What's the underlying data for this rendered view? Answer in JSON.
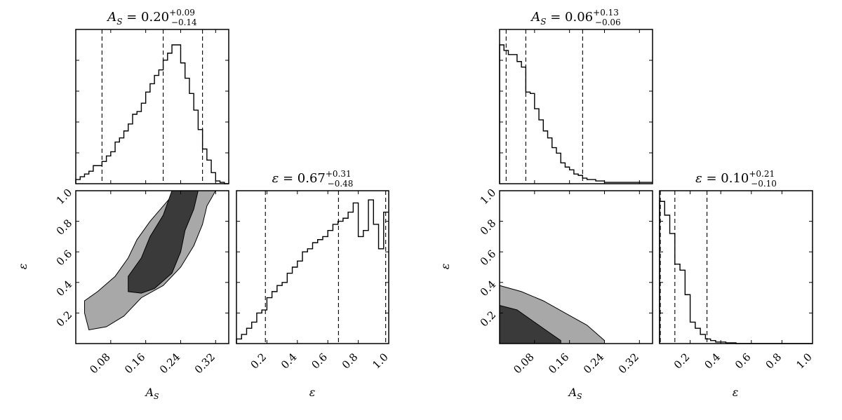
{
  "chart_data": [
    {
      "type": "corner",
      "variables": [
        "A_S",
        "ε"
      ],
      "axis_labels": {
        "x_left": "A_S",
        "x_right": "ε",
        "y_contour": "ε"
      },
      "marginal_A_S": {
        "type": "histogram",
        "title": {
          "lead": "A",
          "sub": "S",
          "eq": " = 0.20",
          "sup": "+0.09",
          "inf": "−0.14"
        },
        "xlim": [
          0.0,
          0.35
        ],
        "quantiles": [
          0.06,
          0.2,
          0.29
        ],
        "bins": [
          0.01,
          0.02,
          0.03,
          0.04,
          0.05,
          0.06,
          0.07,
          0.08,
          0.09,
          0.1,
          0.11,
          0.12,
          0.13,
          0.14,
          0.15,
          0.16,
          0.17,
          0.18,
          0.19,
          0.2,
          0.21,
          0.22,
          0.23,
          0.24,
          0.25,
          0.26,
          0.27,
          0.28,
          0.29,
          0.3,
          0.31,
          0.32,
          0.33,
          0.34,
          0.35
        ],
        "values": [
          0.03,
          0.05,
          0.07,
          0.09,
          0.13,
          0.13,
          0.16,
          0.2,
          0.23,
          0.3,
          0.33,
          0.38,
          0.43,
          0.5,
          0.52,
          0.58,
          0.66,
          0.72,
          0.78,
          0.82,
          0.89,
          0.94,
          1.0,
          1.0,
          0.87,
          0.76,
          0.65,
          0.53,
          0.39,
          0.25,
          0.17,
          0.08,
          0.02,
          0.01,
          0.0
        ]
      },
      "marginal_eps": {
        "type": "histogram",
        "title": {
          "lead": "ε",
          "sub": "",
          "eq": " = 0.67",
          "sup": "+0.31",
          "inf": "−0.48"
        },
        "xlim": [
          0.0,
          1.0
        ],
        "xticks": [
          "0.2",
          "0.4",
          "0.6",
          "0.8",
          "1.0"
        ],
        "quantiles": [
          0.19,
          0.67,
          0.98
        ],
        "bins": [
          0.033,
          0.067,
          0.1,
          0.133,
          0.167,
          0.2,
          0.233,
          0.267,
          0.3,
          0.333,
          0.367,
          0.4,
          0.433,
          0.467,
          0.5,
          0.533,
          0.567,
          0.6,
          0.633,
          0.667,
          0.7,
          0.733,
          0.767,
          0.8,
          0.833,
          0.867,
          0.9,
          0.933,
          0.967,
          1.0
        ],
        "values": [
          0.03,
          0.06,
          0.1,
          0.14,
          0.2,
          0.22,
          0.3,
          0.34,
          0.38,
          0.4,
          0.46,
          0.5,
          0.54,
          0.6,
          0.62,
          0.66,
          0.68,
          0.7,
          0.74,
          0.78,
          0.8,
          0.82,
          0.86,
          0.92,
          0.7,
          0.74,
          0.94,
          0.78,
          0.62,
          0.86
        ]
      },
      "joint": {
        "type": "contour",
        "xlim": [
          0.0,
          0.35
        ],
        "ylim": [
          0.0,
          1.0
        ],
        "xticks": [
          "0.08",
          "0.16",
          "0.24",
          "0.32"
        ],
        "yticks": [
          "0.2",
          "0.4",
          "0.6",
          "0.8",
          "1.0"
        ],
        "levels": [
          "outer",
          "inner"
        ],
        "outer": [
          [
            0.03,
            0.09
          ],
          [
            0.02,
            0.2
          ],
          [
            0.02,
            0.28
          ],
          [
            0.05,
            0.34
          ],
          [
            0.09,
            0.44
          ],
          [
            0.12,
            0.56
          ],
          [
            0.14,
            0.68
          ],
          [
            0.17,
            0.8
          ],
          [
            0.2,
            0.9
          ],
          [
            0.23,
            1.0
          ],
          [
            0.32,
            1.0
          ],
          [
            0.3,
            0.9
          ],
          [
            0.29,
            0.78
          ],
          [
            0.27,
            0.64
          ],
          [
            0.24,
            0.5
          ],
          [
            0.2,
            0.38
          ],
          [
            0.15,
            0.3
          ],
          [
            0.11,
            0.18
          ],
          [
            0.07,
            0.11
          ]
        ],
        "inner": [
          [
            0.12,
            0.34
          ],
          [
            0.12,
            0.44
          ],
          [
            0.15,
            0.56
          ],
          [
            0.17,
            0.7
          ],
          [
            0.2,
            0.84
          ],
          [
            0.22,
            1.0
          ],
          [
            0.28,
            1.0
          ],
          [
            0.27,
            0.88
          ],
          [
            0.25,
            0.74
          ],
          [
            0.24,
            0.6
          ],
          [
            0.22,
            0.46
          ],
          [
            0.18,
            0.36
          ],
          [
            0.15,
            0.33
          ]
        ]
      }
    },
    {
      "type": "corner",
      "variables": [
        "A_S",
        "ε"
      ],
      "axis_labels": {
        "x_left": "A_S",
        "x_right": "ε",
        "y_contour": "ε"
      },
      "marginal_A_S": {
        "type": "histogram",
        "title": {
          "lead": "A",
          "sub": "S",
          "eq": " = 0.06",
          "sup": "+0.13",
          "inf": "−0.06"
        },
        "xlim": [
          0.0,
          0.35
        ],
        "quantiles": [
          0.015,
          0.06,
          0.19
        ],
        "bins": [
          0.01,
          0.02,
          0.03,
          0.04,
          0.05,
          0.06,
          0.07,
          0.08,
          0.09,
          0.1,
          0.11,
          0.12,
          0.13,
          0.14,
          0.15,
          0.16,
          0.17,
          0.18,
          0.19,
          0.2,
          0.21,
          0.22,
          0.23,
          0.24,
          0.25,
          0.26,
          0.27,
          0.28,
          0.29,
          0.3,
          0.31,
          0.32,
          0.33,
          0.34,
          0.35
        ],
        "values": [
          1.0,
          0.96,
          0.93,
          0.93,
          0.88,
          0.84,
          0.66,
          0.65,
          0.54,
          0.46,
          0.38,
          0.33,
          0.26,
          0.22,
          0.15,
          0.12,
          0.1,
          0.07,
          0.06,
          0.04,
          0.03,
          0.03,
          0.02,
          0.02,
          0.01,
          0.01,
          0.01,
          0.01,
          0.01,
          0.01,
          0.01,
          0.01,
          0.01,
          0.01,
          0.01
        ]
      },
      "marginal_eps": {
        "type": "histogram",
        "title": {
          "lead": "ε",
          "sub": "",
          "eq": " = 0.10",
          "sup": "+0.21",
          "inf": "−0.10"
        },
        "xlim": [
          0.0,
          1.0
        ],
        "xticks": [
          "0.2",
          "0.4",
          "0.6",
          "0.8",
          "1.0"
        ],
        "quantiles": [
          0.005,
          0.1,
          0.31
        ],
        "bins": [
          0.033,
          0.067,
          0.1,
          0.133,
          0.167,
          0.2,
          0.233,
          0.267,
          0.3,
          0.333,
          0.367,
          0.4,
          0.433,
          0.467,
          0.5,
          0.533,
          0.567,
          0.6,
          0.633,
          0.667,
          0.7,
          0.733,
          0.767,
          0.8,
          0.833,
          0.867,
          0.9,
          0.933,
          0.967,
          1.0
        ],
        "values": [
          0.93,
          0.84,
          0.72,
          0.52,
          0.48,
          0.32,
          0.14,
          0.1,
          0.06,
          0.03,
          0.02,
          0.01,
          0.01,
          0.005,
          0.005,
          0.0,
          0.0,
          0.0,
          0.0,
          0.0,
          0.0,
          0.0,
          0.0,
          0.0,
          0.0,
          0.0,
          0.0,
          0.0,
          0.0,
          0.0
        ]
      },
      "joint": {
        "type": "contour",
        "xlim": [
          0.0,
          0.35
        ],
        "ylim": [
          0.0,
          1.0
        ],
        "xticks": [
          "0.08",
          "0.16",
          "0.24",
          "0.32"
        ],
        "yticks": [
          "0.2",
          "0.4",
          "0.6",
          "0.8",
          "1.0"
        ],
        "levels": [
          "outer",
          "inner"
        ],
        "outer": [
          [
            0.0,
            0.0
          ],
          [
            0.0,
            0.38
          ],
          [
            0.05,
            0.34
          ],
          [
            0.1,
            0.28
          ],
          [
            0.15,
            0.2
          ],
          [
            0.2,
            0.12
          ],
          [
            0.24,
            0.02
          ],
          [
            0.24,
            0.0
          ]
        ],
        "inner": [
          [
            0.0,
            0.0
          ],
          [
            0.0,
            0.25
          ],
          [
            0.04,
            0.22
          ],
          [
            0.08,
            0.14
          ],
          [
            0.11,
            0.08
          ],
          [
            0.14,
            0.02
          ],
          [
            0.14,
            0.0
          ]
        ]
      }
    }
  ]
}
